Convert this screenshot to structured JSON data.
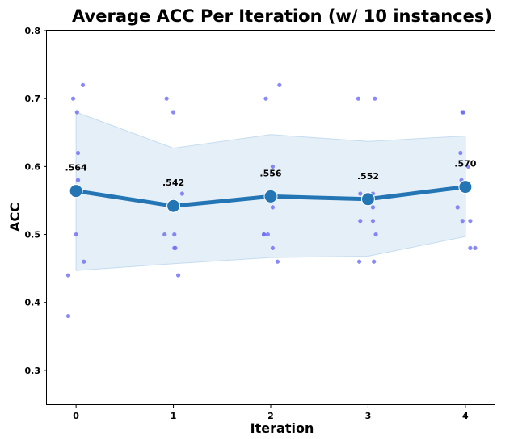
{
  "chart_data": {
    "type": "line",
    "title": "Average ACC Per Iteration (w/ 10 instances)",
    "xlabel": "Iteration",
    "ylabel": "ACC",
    "x": [
      0,
      1,
      2,
      3,
      4
    ],
    "xlim": [
      -0.3,
      4.3
    ],
    "ylim": [
      0.25,
      0.8
    ],
    "yticks": [
      0.3,
      0.4,
      0.5,
      0.6,
      0.7,
      0.8
    ],
    "yticklabels": [
      "0.3",
      "0.4",
      "0.5",
      "0.6",
      "0.7",
      "0.8"
    ],
    "xticklabels": [
      "0",
      "1",
      "2",
      "3",
      "4"
    ],
    "grid": false,
    "colors": {
      "line": "#2475b4",
      "band": "#dbe9f6",
      "points": "#6b6bf5"
    },
    "series": [
      {
        "values": [
          0.564,
          0.542,
          0.556,
          0.552,
          0.57
        ],
        "value_labels": [
          ".564",
          ".542",
          ".556",
          ".552",
          ".570"
        ],
        "band_upper": [
          0.68,
          0.627,
          0.647,
          0.637,
          0.645
        ],
        "band_lower": [
          0.447,
          0.457,
          0.466,
          0.468,
          0.497
        ]
      }
    ],
    "scatter": [
      {
        "x": -0.08,
        "y": 0.38
      },
      {
        "x": -0.08,
        "y": 0.44
      },
      {
        "x": -0.03,
        "y": 0.7
      },
      {
        "x": 0.07,
        "y": 0.72
      },
      {
        "x": 0.01,
        "y": 0.68
      },
      {
        "x": 0.02,
        "y": 0.62
      },
      {
        "x": 0.02,
        "y": 0.58
      },
      {
        "x": 0.0,
        "y": 0.5
      },
      {
        "x": 0.08,
        "y": 0.46
      },
      {
        "x": 0.02,
        "y": 0.56
      },
      {
        "x": 0.93,
        "y": 0.7
      },
      {
        "x": 1.0,
        "y": 0.68
      },
      {
        "x": 1.09,
        "y": 0.56
      },
      {
        "x": 0.91,
        "y": 0.5
      },
      {
        "x": 1.01,
        "y": 0.5
      },
      {
        "x": 1.02,
        "y": 0.48
      },
      {
        "x": 1.01,
        "y": 0.48
      },
      {
        "x": 1.05,
        "y": 0.44
      },
      {
        "x": 1.0,
        "y": 0.54
      },
      {
        "x": 1.03,
        "y": 0.54
      },
      {
        "x": 1.95,
        "y": 0.7
      },
      {
        "x": 2.09,
        "y": 0.72
      },
      {
        "x": 2.02,
        "y": 0.6
      },
      {
        "x": 2.02,
        "y": 0.54
      },
      {
        "x": 1.93,
        "y": 0.5
      },
      {
        "x": 1.97,
        "y": 0.5
      },
      {
        "x": 1.93,
        "y": 0.5
      },
      {
        "x": 2.02,
        "y": 0.48
      },
      {
        "x": 2.07,
        "y": 0.46
      },
      {
        "x": 2.0,
        "y": 0.56
      },
      {
        "x": 2.9,
        "y": 0.7
      },
      {
        "x": 3.07,
        "y": 0.7
      },
      {
        "x": 2.92,
        "y": 0.56
      },
      {
        "x": 3.05,
        "y": 0.56
      },
      {
        "x": 3.05,
        "y": 0.54
      },
      {
        "x": 2.92,
        "y": 0.52
      },
      {
        "x": 3.05,
        "y": 0.52
      },
      {
        "x": 3.08,
        "y": 0.5
      },
      {
        "x": 2.91,
        "y": 0.46
      },
      {
        "x": 3.06,
        "y": 0.46
      },
      {
        "x": 4.03,
        "y": 0.6
      },
      {
        "x": 3.95,
        "y": 0.62
      },
      {
        "x": 3.97,
        "y": 0.68
      },
      {
        "x": 3.98,
        "y": 0.68
      },
      {
        "x": 3.96,
        "y": 0.58
      },
      {
        "x": 3.92,
        "y": 0.54
      },
      {
        "x": 3.97,
        "y": 0.52
      },
      {
        "x": 4.05,
        "y": 0.52
      },
      {
        "x": 4.05,
        "y": 0.48
      },
      {
        "x": 4.1,
        "y": 0.48
      }
    ]
  }
}
